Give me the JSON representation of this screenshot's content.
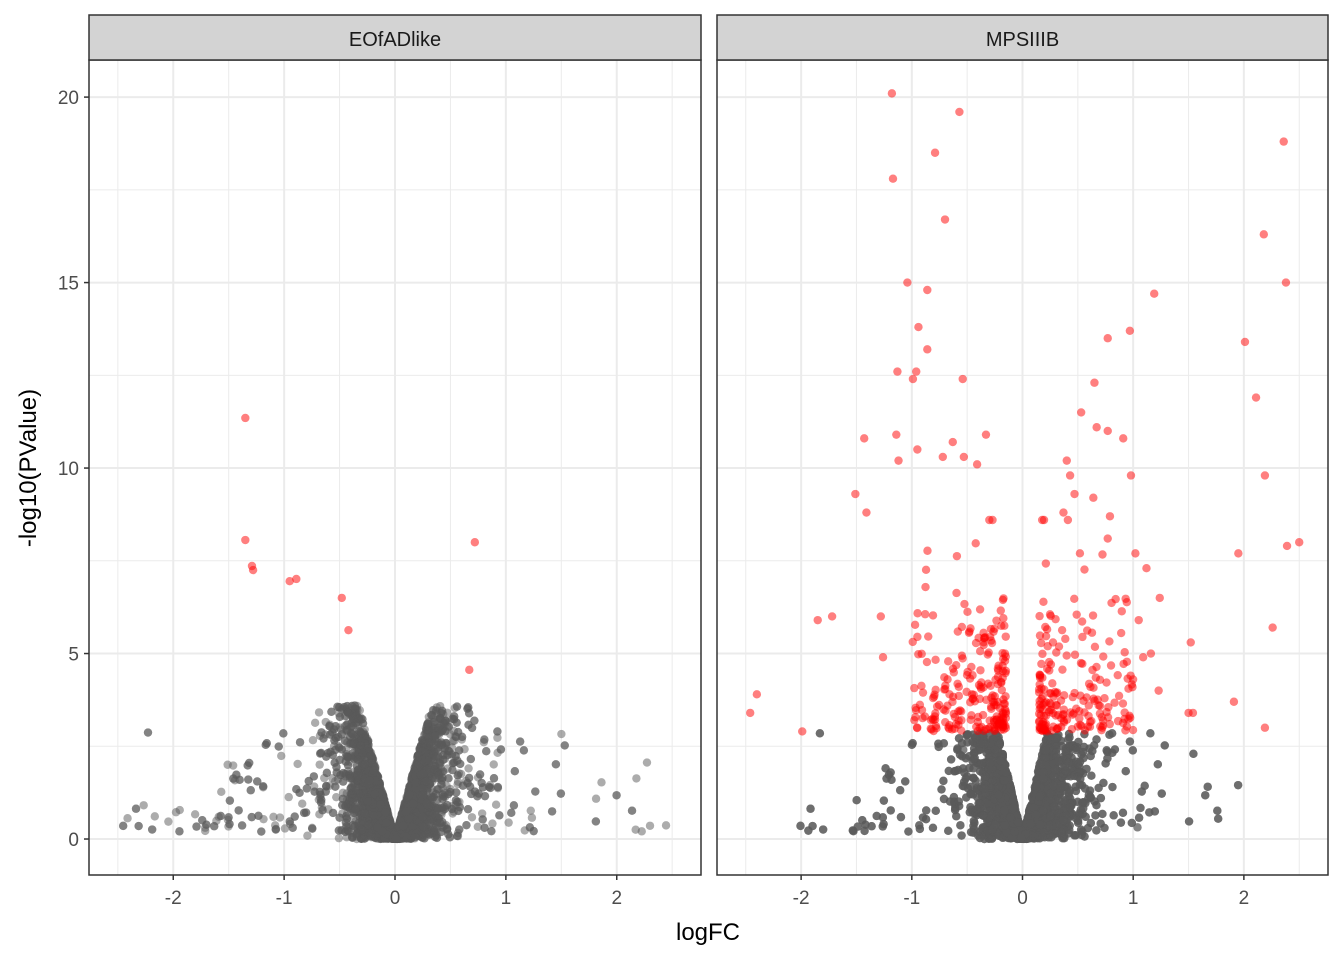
{
  "chart_data": {
    "type": "scatter",
    "subtype": "faceted volcano plot",
    "xlabel": "logFC",
    "ylabel": "-log10(PValue)",
    "xlim": [
      -2.76,
      2.76
    ],
    "ylim": [
      -0.97,
      21.0
    ],
    "x_ticks": [
      -2,
      -1,
      0,
      1,
      2
    ],
    "y_ticks": [
      0,
      5,
      10,
      15,
      20
    ],
    "grid": true,
    "colors": {
      "not_significant": "#595959",
      "significant": "#ff0000",
      "strip": "#d3d3d3",
      "grid": "#ebebeb",
      "border": "#333333"
    },
    "facets": [
      {
        "name": "EOfADlike",
        "significant_points": [
          [
            -1.35,
            11.35
          ],
          [
            -1.35,
            8.06
          ],
          [
            -1.29,
            7.36
          ],
          [
            -1.28,
            7.25
          ],
          [
            -0.95,
            6.95
          ],
          [
            -0.89,
            7.01
          ],
          [
            -0.48,
            6.5
          ],
          [
            -0.42,
            5.63
          ],
          [
            0.72,
            8.0
          ],
          [
            0.67,
            4.56
          ]
        ],
        "nonsignificant_cloud": {
          "n": 5000,
          "y_cap": 3.6,
          "tail_x_max": 2.7,
          "v_slope": 11
        }
      },
      {
        "name": "MPSIIIB",
        "significant_points": [
          [
            -1.18,
            20.1
          ],
          [
            -0.57,
            19.6
          ],
          [
            -0.79,
            18.5
          ],
          [
            -1.17,
            17.8
          ],
          [
            -0.7,
            16.7
          ],
          [
            -1.04,
            15.0
          ],
          [
            -0.86,
            14.8
          ],
          [
            -0.94,
            13.8
          ],
          [
            -0.86,
            13.2
          ],
          [
            -1.13,
            12.6
          ],
          [
            -0.96,
            12.6
          ],
          [
            -0.99,
            12.4
          ],
          [
            -0.54,
            12.4
          ],
          [
            -1.43,
            10.8
          ],
          [
            -1.14,
            10.9
          ],
          [
            -0.33,
            10.9
          ],
          [
            -0.63,
            10.7
          ],
          [
            -0.95,
            10.5
          ],
          [
            -0.72,
            10.3
          ],
          [
            -0.53,
            10.3
          ],
          [
            -1.12,
            10.2
          ],
          [
            -0.41,
            10.1
          ],
          [
            -1.51,
            9.3
          ],
          [
            -1.41,
            8.8
          ],
          [
            -1.28,
            6.0
          ],
          [
            -1.72,
            6.0
          ],
          [
            -1.85,
            5.9
          ],
          [
            -1.26,
            4.9
          ],
          [
            -2.4,
            3.9
          ],
          [
            -2.46,
            3.4
          ],
          [
            -1.99,
            2.9
          ],
          [
            2.36,
            18.8
          ],
          [
            2.18,
            16.3
          ],
          [
            2.38,
            15.0
          ],
          [
            1.19,
            14.7
          ],
          [
            0.97,
            13.7
          ],
          [
            0.77,
            13.5
          ],
          [
            2.01,
            13.4
          ],
          [
            0.65,
            12.3
          ],
          [
            0.53,
            11.5
          ],
          [
            2.11,
            11.9
          ],
          [
            0.67,
            11.1
          ],
          [
            0.77,
            11.0
          ],
          [
            0.91,
            10.8
          ],
          [
            0.4,
            10.2
          ],
          [
            0.98,
            9.8
          ],
          [
            2.19,
            9.8
          ],
          [
            0.43,
            9.8
          ],
          [
            0.47,
            9.3
          ],
          [
            0.64,
            9.2
          ],
          [
            0.37,
            8.8
          ],
          [
            0.79,
            8.7
          ],
          [
            0.41,
            8.6
          ],
          [
            0.77,
            8.1
          ],
          [
            2.5,
            8.0
          ],
          [
            2.39,
            7.9
          ],
          [
            1.95,
            7.7
          ],
          [
            1.02,
            7.7
          ],
          [
            1.12,
            7.3
          ],
          [
            1.24,
            6.5
          ],
          [
            1.05,
            5.9
          ],
          [
            2.26,
            5.7
          ],
          [
            1.52,
            5.3
          ],
          [
            1.16,
            5.0
          ],
          [
            1.09,
            4.9
          ],
          [
            1.91,
            3.7
          ],
          [
            1.23,
            4.0
          ],
          [
            1.5,
            3.4
          ],
          [
            1.54,
            3.4
          ],
          [
            2.19,
            3.0
          ]
        ],
        "significant_cloud": {
          "n": 420,
          "y_min": 2.9,
          "y_max": 8.6,
          "abs_x_range": [
            0.15,
            1.0
          ]
        },
        "nonsignificant_cloud": {
          "n": 6000,
          "y_cap": 2.85,
          "tail_x_max": 2.2,
          "v_slope": 13
        }
      }
    ]
  }
}
